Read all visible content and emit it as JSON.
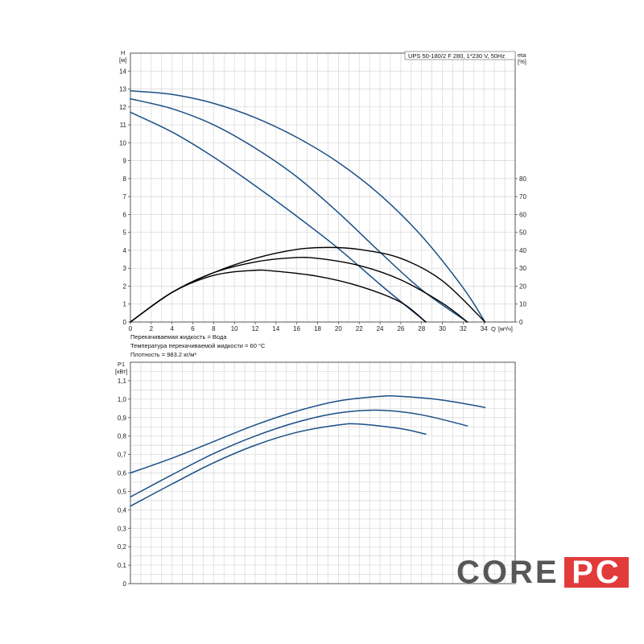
{
  "chart_data": [
    {
      "type": "line",
      "title": "UPS 50-180/2 F 280, 1*230 V, 50Hz",
      "ylabel": "H",
      "yunit": "[м]",
      "y2label": "eta",
      "y2unit": "[%]",
      "xlabel": "Q",
      "xunit": "[м³/ч]",
      "xlim": [
        0,
        37
      ],
      "ylim": [
        0,
        15
      ],
      "y2lim": [
        0,
        100
      ],
      "xticks": [
        0,
        2,
        4,
        6,
        8,
        10,
        12,
        14,
        16,
        18,
        20,
        22,
        24,
        26,
        28,
        30,
        32,
        34
      ],
      "yticks": [
        0,
        1,
        2,
        3,
        4,
        5,
        6,
        7,
        8,
        9,
        10,
        11,
        12,
        13,
        14
      ],
      "y2ticks": [
        0,
        10,
        20,
        30,
        40,
        50,
        60,
        70,
        80
      ],
      "grid": true,
      "series": [
        {
          "x": [
            0,
            4,
            8,
            12,
            16,
            20,
            24,
            28,
            32,
            34.1
          ],
          "y": [
            12.9,
            12.7,
            12.2,
            11.4,
            10.3,
            8.9,
            7.1,
            4.8,
            1.9,
            0
          ],
          "axis": "H",
          "color": "#1a4f86"
        },
        {
          "x": [
            0,
            4,
            8,
            12,
            16,
            20,
            24,
            28,
            32.4
          ],
          "y": [
            12.45,
            11.9,
            11.0,
            9.7,
            8.1,
            6.1,
            3.9,
            1.8,
            0
          ],
          "axis": "H",
          "color": "#1a4f86"
        },
        {
          "x": [
            0,
            4,
            8,
            12,
            16,
            20,
            24,
            28.4
          ],
          "y": [
            11.7,
            10.6,
            9.2,
            7.6,
            5.9,
            4.1,
            2.1,
            0
          ],
          "axis": "H",
          "color": "#1a4f86"
        },
        {
          "x": [
            0,
            4,
            8,
            12,
            16,
            19,
            22,
            26,
            30,
            34.1
          ],
          "y": [
            0,
            16.5,
            27.5,
            35.5,
            40.5,
            41.6,
            40.5,
            35.5,
            23,
            0
          ],
          "axis": "eta",
          "color": "#000000"
        },
        {
          "x": [
            0,
            4,
            8,
            12,
            15.5,
            18,
            22,
            26,
            30,
            32.4
          ],
          "y": [
            0,
            16.5,
            27.5,
            33.5,
            35.8,
            35.5,
            31.5,
            23.5,
            10.5,
            0
          ],
          "axis": "eta",
          "color": "#000000"
        },
        {
          "x": [
            0,
            4,
            8,
            11.8,
            14,
            18,
            22,
            26,
            28.4
          ],
          "y": [
            0,
            16.5,
            26.0,
            28.8,
            28.3,
            25.5,
            20.0,
            11.0,
            0
          ],
          "axis": "eta",
          "color": "#000000"
        }
      ]
    },
    {
      "type": "line",
      "ylabel": "P1",
      "yunit": "[кВт]",
      "xlim": [
        0,
        37
      ],
      "ylim": [
        0,
        1.2
      ],
      "yticks": [
        0,
        0.1,
        0.2,
        0.3,
        0.4,
        0.5,
        0.6,
        0.7,
        0.8,
        0.9,
        1.0,
        1.1
      ],
      "ytick_labels": [
        "0",
        "0,1",
        "0,2",
        "0,3",
        "0,4",
        "0,5",
        "0,6",
        "0,7",
        "0,8",
        "0,9",
        "1,0",
        "1,1"
      ],
      "grid": true,
      "series": [
        {
          "x": [
            0,
            4,
            8,
            12,
            16,
            20,
            24,
            26,
            30,
            34.1
          ],
          "y": [
            0.6,
            0.68,
            0.77,
            0.86,
            0.935,
            0.99,
            1.015,
            1.015,
            0.995,
            0.955
          ],
          "color": "#1a4f86"
        },
        {
          "x": [
            0,
            4,
            8,
            12,
            16,
            20,
            24,
            28,
            32.4
          ],
          "y": [
            0.47,
            0.59,
            0.705,
            0.8,
            0.875,
            0.925,
            0.94,
            0.915,
            0.855
          ],
          "color": "#1a4f86"
        },
        {
          "x": [
            0,
            4,
            8,
            12,
            16,
            20,
            22,
            26,
            28.4
          ],
          "y": [
            0.42,
            0.54,
            0.655,
            0.75,
            0.82,
            0.86,
            0.865,
            0.84,
            0.81
          ],
          "color": "#1a4f86"
        }
      ]
    }
  ],
  "notes": {
    "line1": "Перекачиваемая жидкость = Вода",
    "line2": "Температура перекачиваемой жидкости = 60 °C",
    "line3": "Плотность = 983.2 кг/м³"
  },
  "logo": {
    "part1": "CORE",
    "part2": "PC",
    "color1": "#575757",
    "color2": "#e23b3b"
  }
}
